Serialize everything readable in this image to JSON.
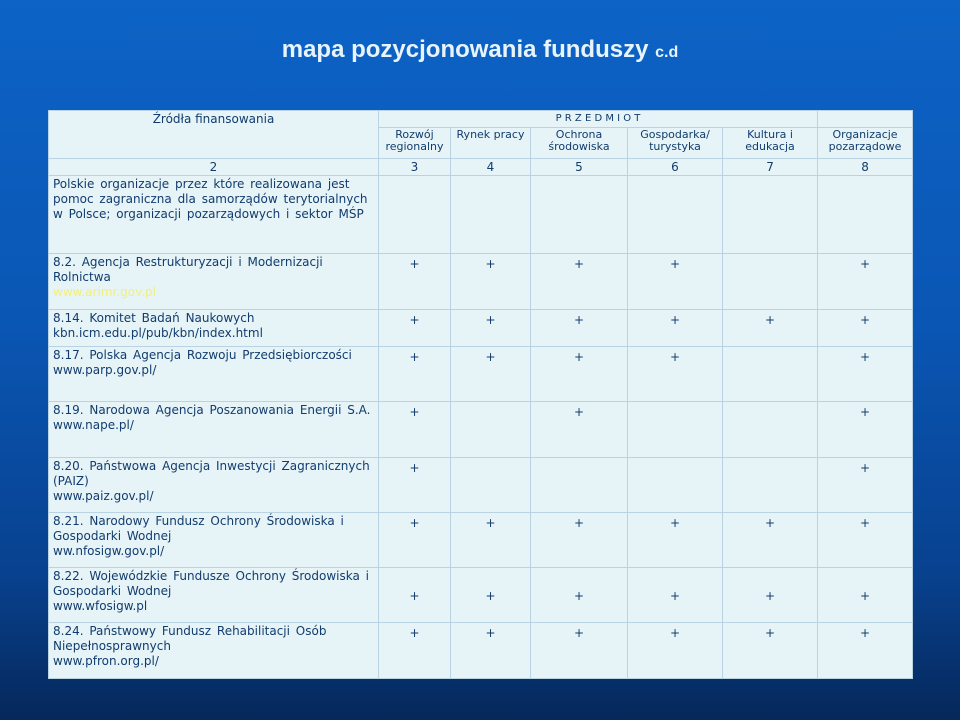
{
  "title": {
    "main": "mapa pozycjonowania funduszy",
    "suffix": "c.d"
  },
  "header": {
    "sources": "Źródła finansowania",
    "subject": "P R Z E D M I O T",
    "columns": [
      "Rozwój regionalny",
      "Rynek pracy",
      "Ochrona środowiska",
      "Gospodarka/ turystyka",
      "Kultura i edukacja",
      "Organizacje pozarządowe"
    ],
    "numbers": [
      "2",
      "3",
      "4",
      "5",
      "6",
      "7",
      "8"
    ]
  },
  "intro": "Polskie organizacje przez które realizowana jest pomoc zagraniczna dla samorządów terytorialnych w Polsce; organizacji pozarządowych i sektor MŚP",
  "rows": [
    {
      "name": "8.2. Agencja Restrukturyzacji i Modernizacji Rolnictwa",
      "url": "www.arimr.gov.pl",
      "link": true,
      "marks": [
        "+",
        "+",
        "+",
        "+",
        "",
        "+"
      ]
    },
    {
      "name": "8.14. Komitet Badań Naukowych",
      "url": "kbn.icm.edu.pl/pub/kbn/index.html",
      "marks": [
        "+",
        "+",
        "+",
        "+",
        "+",
        "+"
      ]
    },
    {
      "name": "8.17. Polska Agencja Rozwoju Przedsiębiorczości",
      "url": "www.parp.gov.pl/",
      "marks": [
        "+",
        "+",
        "+",
        "+",
        "",
        "+"
      ]
    },
    {
      "name": "8.19. Narodowa Agencja Poszanowania Energii S.A.",
      "url": "www.nape.pl/",
      "marks": [
        "+",
        "",
        "+",
        "",
        "",
        "+"
      ]
    },
    {
      "name": "8.20. Państwowa Agencja Inwestycji Zagranicznych (PAIZ)",
      "url": "www.paiz.gov.pl/",
      "marks": [
        "+",
        "",
        "",
        "",
        "",
        "+"
      ]
    },
    {
      "name": "8.21. Narodowy Fundusz Ochrony Środowiska i Gospodarki Wodnej",
      "url": "ww.nfosigw.gov.pl/",
      "marks": [
        "+",
        "+",
        "+",
        "+",
        "+",
        "+"
      ]
    },
    {
      "name": "8.22. Wojewódzkie Fundusze Ochrony Środowiska i Gospodarki Wodnej",
      "url": "www.wfosigw.pl",
      "marks": [
        "+",
        "+",
        "+",
        "+",
        "+",
        "+"
      ],
      "middle": true
    },
    {
      "name": "8.24. Państwowy Fundusz Rehabilitacji Osób Niepełnosprawnych",
      "url": "www.pfron.org.pl/",
      "marks": [
        "+",
        "+",
        "+",
        "+",
        "+",
        "+"
      ]
    }
  ]
}
